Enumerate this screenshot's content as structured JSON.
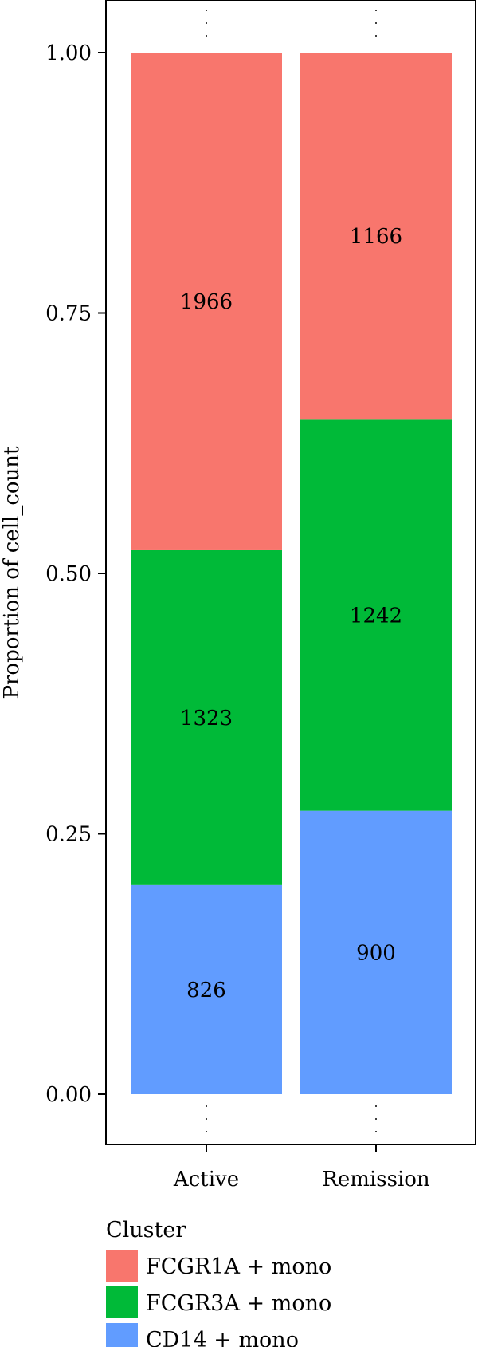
{
  "chart_data": {
    "type": "bar",
    "stacked": true,
    "normalized": true,
    "categories": [
      "Active",
      "Remission"
    ],
    "series": [
      {
        "name": "CD14 + mono",
        "values": [
          826,
          900
        ],
        "color": "#619CFF"
      },
      {
        "name": "FCGR3A + mono",
        "values": [
          1323,
          1242
        ],
        "color": "#00BA38"
      },
      {
        "name": "FCGR1A + mono",
        "values": [
          1966,
          1166
        ],
        "color": "#F8766D"
      }
    ],
    "ylabel": "Proportion of cell_count",
    "yticks": [
      "0.00",
      "0.25",
      "0.50",
      "0.75",
      "1.00"
    ],
    "ylim": [
      0,
      1
    ],
    "grid": false,
    "legend": {
      "title": "Cluster",
      "position": "bottom",
      "entries": [
        "FCGR1A + mono",
        "FCGR3A + mono",
        "CD14 + mono"
      ]
    }
  }
}
